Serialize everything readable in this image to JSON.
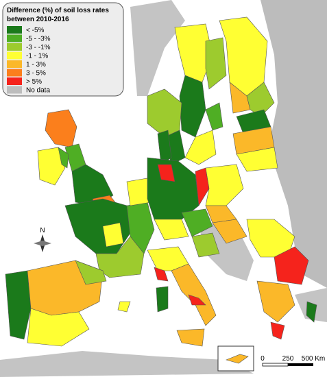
{
  "legend": {
    "title": "Difference (%) of soil loss rates between 2010-2016",
    "items": [
      {
        "label": "< -5%",
        "color": "#1b7a1b"
      },
      {
        "label": "-5 - -3%",
        "color": "#4fae24"
      },
      {
        "label": "-3 - -1%",
        "color": "#9dcb2e"
      },
      {
        "label": "-1 - 1%",
        "color": "#ffff33"
      },
      {
        "label": "1 - 3%",
        "color": "#fbb829"
      },
      {
        "label": "3 - 5%",
        "color": "#fb7f1c"
      },
      {
        "label": "> 5%",
        "color": "#f5231c"
      },
      {
        "label": "No data",
        "color": "#bdbdbd"
      }
    ]
  },
  "compass": {
    "label": "N"
  },
  "scale_bar": {
    "labels": [
      "0",
      "250",
      "500 Km"
    ]
  }
}
